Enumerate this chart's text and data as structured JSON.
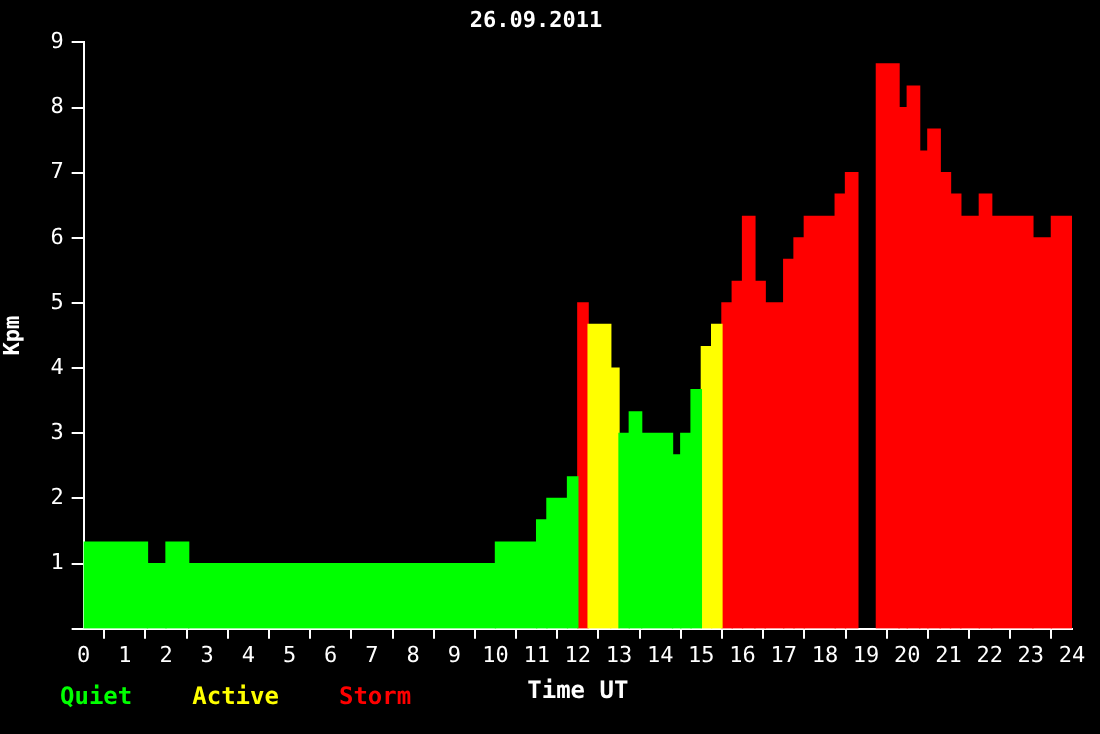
{
  "chart_data": {
    "type": "histogram",
    "title": "26.09.2011",
    "xlabel": "Time UT",
    "ylabel": "Kpm",
    "bins": [
      0,
      1.55,
      2,
      2.55,
      10,
      11,
      11.25,
      11.75,
      12,
      12.25,
      12.8,
      13,
      13.25,
      13.55,
      14.3,
      14.5,
      14.75,
      15,
      15.25,
      15.5,
      15.75,
      16,
      16.3,
      16.55,
      17,
      17.25,
      17.5,
      18.25,
      18.5,
      18.8,
      19.25,
      19.8,
      20,
      20.3,
      20.5,
      20.8,
      21.05,
      21.3,
      21.75,
      22.05,
      23.05,
      23.5,
      24
    ],
    "series": [
      {
        "name": "Quiet",
        "color": "#00ff00",
        "values": [
          1.33,
          1,
          1.33,
          1,
          1.33,
          1.67,
          2,
          2.33,
          null,
          null,
          null,
          3,
          3.33,
          3,
          2.67,
          3,
          3.67,
          null,
          null,
          null,
          null,
          null,
          null,
          null,
          null,
          null,
          null,
          null,
          null,
          null,
          null,
          null,
          null,
          null,
          null,
          null,
          null,
          null,
          null,
          null,
          null,
          null
        ]
      },
      {
        "name": "Active",
        "color": "#ffff00",
        "values": [
          null,
          null,
          null,
          null,
          null,
          null,
          null,
          null,
          null,
          4.67,
          4,
          null,
          null,
          null,
          null,
          null,
          null,
          4.33,
          4.67,
          null,
          null,
          null,
          null,
          null,
          null,
          null,
          null,
          null,
          null,
          null,
          null,
          null,
          null,
          null,
          null,
          null,
          null,
          null,
          null,
          null,
          null,
          null
        ]
      },
      {
        "name": "Storm",
        "color": "#ff0000",
        "values": [
          null,
          null,
          null,
          null,
          null,
          null,
          null,
          null,
          5,
          null,
          null,
          null,
          null,
          null,
          null,
          null,
          null,
          null,
          null,
          5,
          5.33,
          6.33,
          5.33,
          5,
          5.67,
          6,
          6.33,
          6.67,
          7,
          null,
          8.67,
          8,
          8.33,
          7.33,
          7.67,
          7,
          6.67,
          6.33,
          6.67,
          6.33,
          6,
          6.33
        ]
      }
    ],
    "xlim": [
      0,
      24
    ],
    "xticks": [
      0,
      1,
      2,
      3,
      4,
      5,
      6,
      7,
      8,
      9,
      10,
      11,
      12,
      13,
      14,
      15,
      16,
      17,
      18,
      19,
      20,
      21,
      22,
      23,
      24
    ],
    "ylim": [
      0,
      9
    ],
    "yticks": [
      {
        "value": 0,
        "label": null
      },
      1,
      2,
      3,
      4,
      5,
      6,
      7,
      8,
      9
    ],
    "grid": false,
    "legend": "bottom left"
  }
}
